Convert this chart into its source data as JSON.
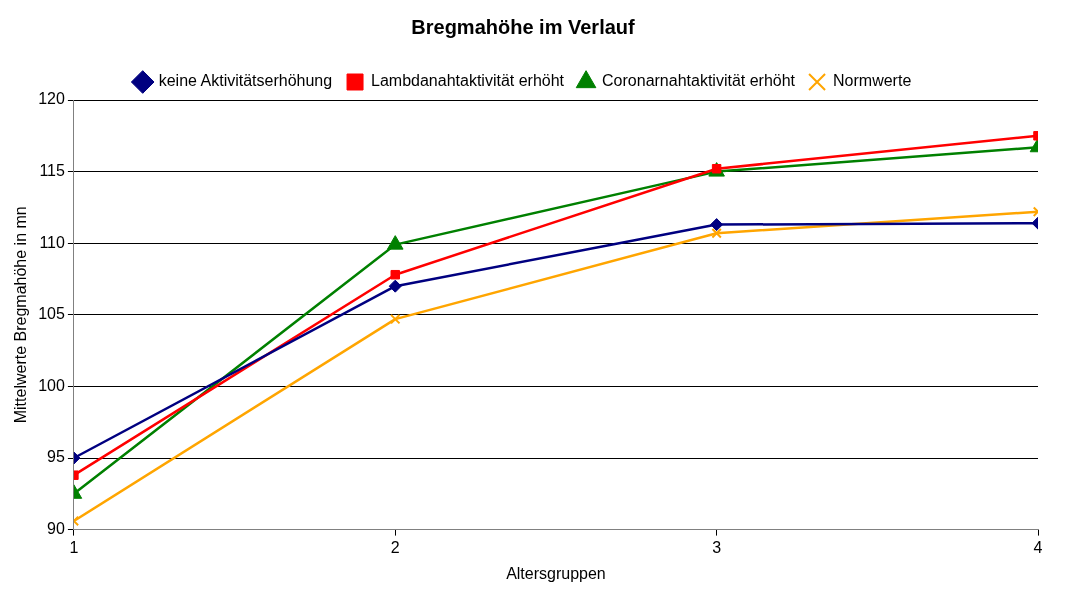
{
  "chart_data": {
    "type": "line",
    "title": "Bregmahöhe im Verlauf",
    "xlabel": "Altersgruppen",
    "ylabel": "Mittelwerte Bregmahöhe in mn",
    "x": [
      1,
      2,
      3,
      4
    ],
    "xlim": [
      1,
      4
    ],
    "xticks": [
      1,
      2,
      3,
      4
    ],
    "ylim": [
      90,
      120
    ],
    "yticks": [
      90,
      95,
      100,
      105,
      110,
      115,
      120
    ],
    "grid": "y",
    "legend": "top",
    "line_style": "solid",
    "series": [
      {
        "name": "keine Aktivitätserhöhung",
        "color": "#000080",
        "marker": "diamond",
        "values": [
          95.0,
          107.0,
          111.3,
          111.4
        ]
      },
      {
        "name": "Lambdanahtaktivität erhöht",
        "color": "#ff0000",
        "marker": "square",
        "values": [
          93.8,
          107.8,
          115.2,
          117.5
        ]
      },
      {
        "name": "Coronarnahtaktivität erhöht",
        "color": "#008000",
        "marker": "triangle",
        "values": [
          92.5,
          109.9,
          115.0,
          116.7
        ]
      },
      {
        "name": "Normwerte",
        "color": "#ffa500",
        "marker": "cross",
        "values": [
          90.6,
          104.7,
          110.7,
          112.2
        ]
      }
    ]
  }
}
